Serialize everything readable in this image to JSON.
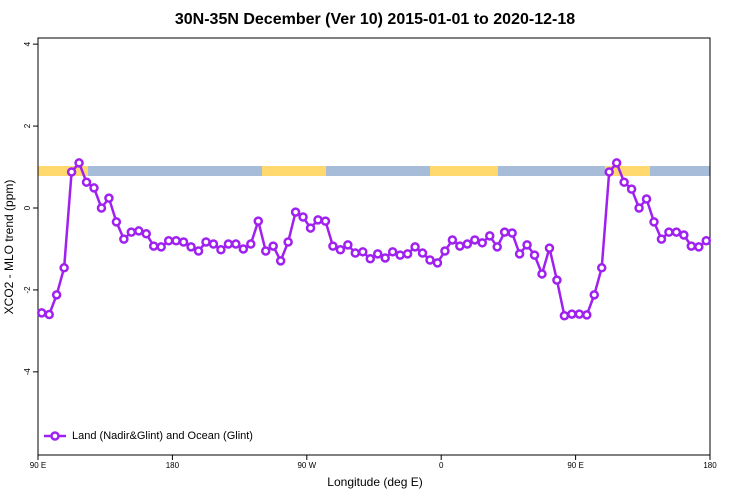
{
  "chart_data": {
    "type": "line",
    "title": "30N-35N December (Ver 10)   2015-01-01 to 2020-12-18",
    "x_label": "Longitude (deg E)",
    "y_label": "XCO2 - MLO trend (ppm)",
    "x": [
      92.5,
      97.5,
      102.5,
      107.5,
      112.5,
      117.5,
      122.5,
      127.5,
      132.5,
      137.5,
      142.5,
      147.5,
      152.5,
      157.5,
      162.5,
      167.5,
      172.5,
      177.5,
      182.5,
      187.5,
      192.5,
      197.5,
      202.5,
      207.5,
      212.5,
      217.5,
      222.5,
      227.5,
      232.5,
      237.5,
      242.5,
      247.5,
      252.5,
      257.5,
      262.5,
      267.5,
      272.5,
      277.5,
      282.5,
      287.5,
      292.5,
      297.5,
      302.5,
      307.5,
      312.5,
      317.5,
      322.5,
      327.5,
      332.5,
      337.5,
      342.5,
      347.5,
      352.5,
      357.5,
      362.5,
      367.5,
      372.5,
      377.5,
      382.5,
      387.5,
      392.5,
      397.5,
      402.5,
      407.5,
      412.5,
      417.5,
      422.5,
      427.5,
      432.5,
      437.5,
      442.5,
      447.5,
      452.5,
      457.5,
      462.5,
      467.5,
      472.5,
      477.5,
      482.5,
      487.5,
      492.5,
      497.5,
      502.5,
      507.5,
      512.5,
      517.5,
      522.5,
      527.5,
      532.5,
      537.5
    ],
    "series": [
      {
        "name": "Land (Nadir&Glint) and Ocean (Glint)",
        "color": "#a020f0",
        "values": [
          -2.56,
          -2.6,
          -2.12,
          -1.46,
          0.88,
          1.1,
          0.63,
          0.49,
          0.0,
          0.24,
          -0.34,
          -0.76,
          -0.59,
          -0.56,
          -0.63,
          -0.93,
          -0.95,
          -0.8,
          -0.8,
          -0.83,
          -0.95,
          -1.05,
          -0.83,
          -0.88,
          -1.02,
          -0.88,
          -0.88,
          -1.0,
          -0.88,
          -0.32,
          -1.05,
          -0.93,
          -1.29,
          -0.83,
          -0.1,
          -0.22,
          -0.49,
          -0.29,
          -0.32,
          -0.93,
          -1.02,
          -0.9,
          -1.1,
          -1.07,
          -1.24,
          -1.12,
          -1.22,
          -1.07,
          -1.15,
          -1.12,
          -0.95,
          -1.1,
          -1.27,
          -1.34,
          -1.05,
          -0.78,
          -0.93,
          -0.88,
          -0.78,
          -0.85,
          -0.68,
          -0.95,
          -0.59,
          -0.61,
          -1.12,
          -0.9,
          -1.15,
          -1.61,
          -0.98,
          -1.76,
          -2.63,
          -2.59,
          -2.59,
          -2.61,
          -2.12,
          -1.46,
          0.88,
          1.1,
          0.63,
          0.46,
          0.0,
          0.22,
          -0.34,
          -0.76,
          -0.59,
          -0.59,
          -0.66,
          -0.93,
          -0.95,
          -0.8
        ]
      }
    ],
    "xlim": [
      90,
      540
    ],
    "xticks": [
      {
        "value": 90,
        "label": "90 E"
      },
      {
        "value": 180,
        "label": "180"
      },
      {
        "value": 270,
        "label": "90 W"
      },
      {
        "value": 360,
        "label": "0"
      },
      {
        "value": 450,
        "label": "90 E"
      },
      {
        "value": 540,
        "label": "180"
      }
    ],
    "ylim": [
      -6.03,
      4.15
    ],
    "yticks": [
      -4,
      -2,
      0,
      2,
      4
    ],
    "legend": "bottom-left"
  }
}
